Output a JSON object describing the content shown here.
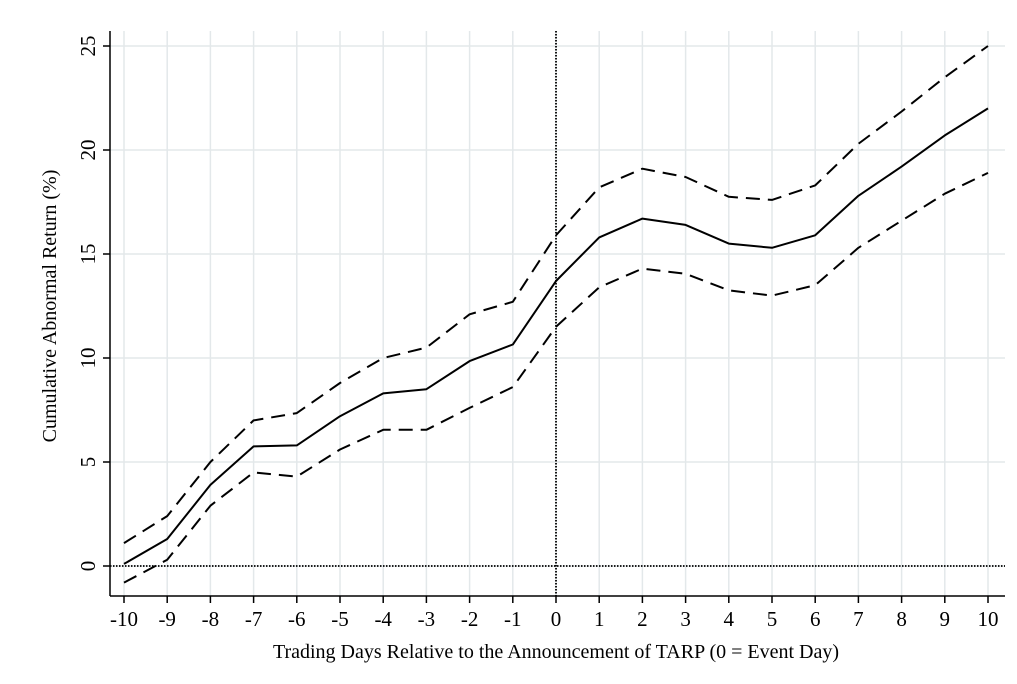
{
  "chart_data": {
    "type": "line",
    "xlabel": "Trading Days Relative to the Announcement of TARP (0 = Event Day)",
    "ylabel": "Cumulative Abnormal Return (%)",
    "x": [
      -10,
      -9,
      -8,
      -7,
      -6,
      -5,
      -4,
      -3,
      -2,
      -1,
      0,
      1,
      2,
      3,
      4,
      5,
      6,
      7,
      8,
      9,
      10
    ],
    "x_tick_labels": [
      "-10",
      "-9",
      "-8",
      "-7",
      "-6",
      "-5",
      "-4",
      "-3",
      "-2",
      "-1",
      "0",
      "1",
      "2",
      "3",
      "4",
      "5",
      "6",
      "7",
      "8",
      "9",
      "10"
    ],
    "y_ticks": [
      0,
      5,
      10,
      15,
      20,
      25
    ],
    "y_tick_labels": [
      "0",
      "5",
      "10",
      "15",
      "20",
      "25"
    ],
    "xlim": [
      -10.4,
      10.4
    ],
    "ylim": [
      -1.5,
      25.6
    ],
    "grid": true,
    "reference_lines": {
      "x": 0,
      "y": 0
    },
    "series": [
      {
        "style": "solid",
        "values": [
          0.1,
          1.3,
          3.9,
          5.75,
          5.8,
          7.2,
          8.3,
          8.5,
          9.85,
          10.65,
          13.7,
          15.8,
          16.7,
          16.4,
          15.5,
          15.3,
          15.9,
          17.8,
          19.2,
          20.7,
          22.0
        ]
      },
      {
        "style": "dashed",
        "values": [
          1.1,
          2.4,
          5.0,
          7.0,
          7.35,
          8.8,
          10.0,
          10.5,
          12.1,
          12.7,
          15.9,
          18.2,
          19.1,
          18.7,
          17.75,
          17.6,
          18.3,
          20.3,
          21.85,
          23.5,
          25.0
        ]
      },
      {
        "style": "dashed",
        "values": [
          -0.8,
          0.3,
          2.9,
          4.5,
          4.3,
          5.6,
          6.55,
          6.55,
          7.6,
          8.6,
          11.5,
          13.4,
          14.3,
          14.05,
          13.25,
          13.0,
          13.5,
          15.3,
          16.6,
          17.9,
          18.9
        ]
      }
    ]
  }
}
